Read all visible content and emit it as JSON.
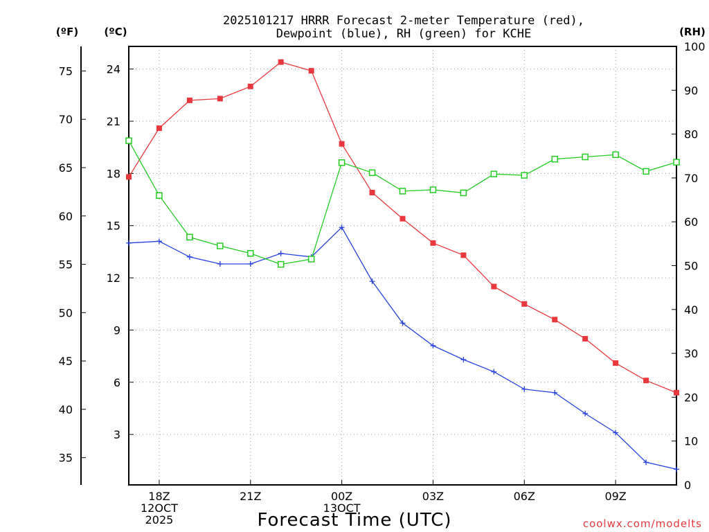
{
  "chart_data": {
    "type": "line",
    "title_lines": [
      "2025101217 HRRR Forecast 2-meter Temperature (red),",
      "Dewpoint (blue), RH (green) for KCHE"
    ],
    "xlabel": "Forecast Time (UTC)",
    "credit": "coolwx.com/modelts",
    "units": {
      "fahrenheit": "(ºF)",
      "celsius": "(ºC)",
      "rh": "(RH)"
    },
    "x_hours": [
      17,
      18,
      19,
      20,
      21,
      22,
      23,
      24,
      25,
      26,
      27,
      28,
      29,
      30,
      31,
      32,
      33,
      34,
      35
    ],
    "x_range": [
      17,
      35
    ],
    "x_ticks": [
      {
        "hour": 18,
        "lines": [
          "18Z",
          "12OCT",
          "2025"
        ]
      },
      {
        "hour": 21,
        "lines": [
          "21Z"
        ]
      },
      {
        "hour": 24,
        "lines": [
          "00Z",
          "13OCT"
        ]
      },
      {
        "hour": 27,
        "lines": [
          "03Z"
        ]
      },
      {
        "hour": 30,
        "lines": [
          "06Z"
        ]
      },
      {
        "hour": 33,
        "lines": [
          "09Z"
        ]
      }
    ],
    "celsius_range": [
      0.1,
      25.3
    ],
    "celsius_ticks": [
      3,
      6,
      9,
      12,
      15,
      18,
      21,
      24
    ],
    "fahrenheit_ticks": [
      35,
      40,
      45,
      50,
      55,
      60,
      65,
      70,
      75
    ],
    "rh_range": [
      0,
      100
    ],
    "rh_ticks": [
      0,
      10,
      20,
      30,
      40,
      50,
      60,
      70,
      80,
      90,
      100
    ],
    "series": [
      {
        "name": "2-meter Temperature",
        "units": "celsius",
        "color": "#e8383d",
        "marker": "filled-square",
        "values": [
          17.8,
          20.6,
          22.2,
          22.3,
          23.0,
          24.4,
          23.9,
          19.7,
          16.9,
          15.4,
          14.0,
          13.3,
          11.5,
          10.5,
          9.6,
          8.5,
          7.1,
          6.1,
          5.4
        ]
      },
      {
        "name": "Dewpoint",
        "units": "celsius",
        "color": "#2540e0",
        "marker": "plus",
        "values": [
          14.0,
          14.1,
          13.2,
          12.8,
          12.8,
          13.4,
          13.2,
          14.9,
          11.8,
          9.4,
          8.1,
          7.3,
          6.6,
          5.6,
          5.4,
          4.2,
          3.1,
          1.4,
          1.0
        ]
      },
      {
        "name": "Relative Humidity",
        "units": "rh",
        "color": "#22cc22",
        "marker": "open-square",
        "values": [
          78.5,
          66.0,
          56.5,
          54.5,
          52.8,
          50.3,
          51.5,
          73.5,
          71.2,
          67.0,
          67.3,
          66.6,
          70.9,
          70.6,
          74.3,
          74.8,
          75.3,
          71.5,
          73.6
        ]
      }
    ]
  }
}
